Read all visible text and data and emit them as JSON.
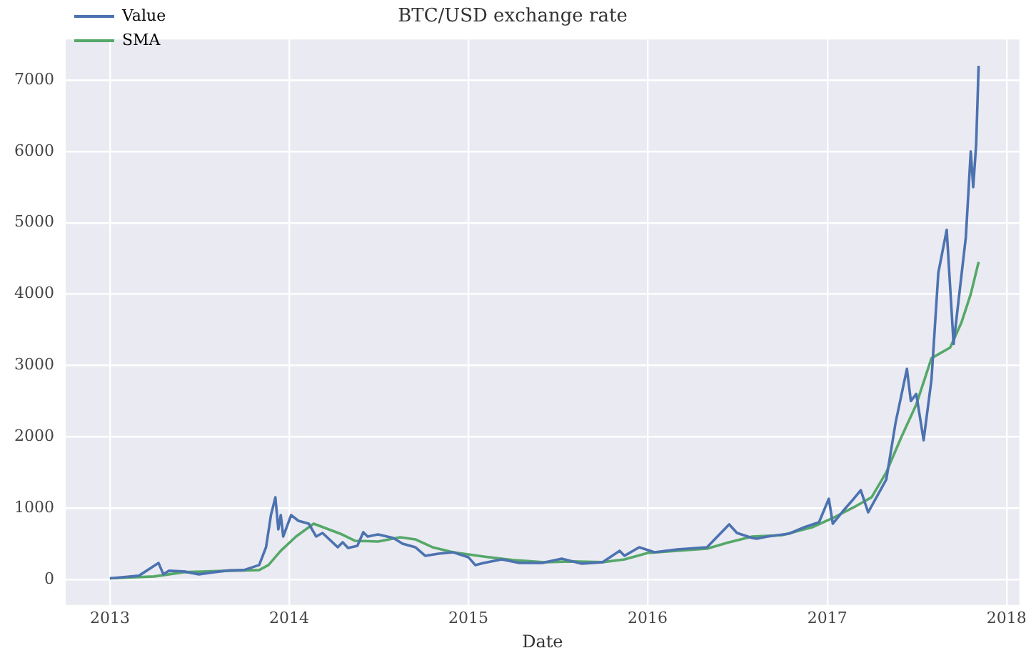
{
  "chart_data": {
    "type": "line",
    "title": "BTC/USD exchange rate",
    "xlabel": "Date",
    "xlim": [
      "2012-10-03",
      "2018-01-27"
    ],
    "xticks": [
      "2013",
      "2014",
      "2015",
      "2016",
      "2017",
      "2018"
    ],
    "ylim": [
      -360,
      7570
    ],
    "yticks": [
      0,
      1000,
      2000,
      3000,
      4000,
      5000,
      6000,
      7000
    ],
    "grid": true,
    "legend": "top left",
    "marker": "none",
    "line_style": "solid",
    "series": [
      {
        "name": "Value",
        "color": "#4c72b0",
        "x": [
          "2013-01-01",
          "2013-03-01",
          "2013-04-10",
          "2013-04-20",
          "2013-05-01",
          "2013-06-01",
          "2013-07-01",
          "2013-08-01",
          "2013-09-01",
          "2013-10-01",
          "2013-11-01",
          "2013-11-15",
          "2013-11-25",
          "2013-12-04",
          "2013-12-10",
          "2013-12-15",
          "2013-12-20",
          "2014-01-05",
          "2014-01-20",
          "2014-02-10",
          "2014-02-25",
          "2014-03-10",
          "2014-04-10",
          "2014-04-20",
          "2014-05-01",
          "2014-05-20",
          "2014-06-01",
          "2014-06-10",
          "2014-07-01",
          "2014-08-01",
          "2014-08-20",
          "2014-09-15",
          "2014-10-05",
          "2014-11-01",
          "2014-12-01",
          "2015-01-01",
          "2015-01-15",
          "2015-02-01",
          "2015-03-10",
          "2015-04-15",
          "2015-06-01",
          "2015-07-10",
          "2015-08-20",
          "2015-10-01",
          "2015-11-05",
          "2015-11-15",
          "2015-12-15",
          "2016-01-15",
          "2016-03-01",
          "2016-05-01",
          "2016-06-15",
          "2016-07-01",
          "2016-08-01",
          "2016-08-10",
          "2016-09-01",
          "2016-10-15",
          "2016-11-15",
          "2016-12-15",
          "2017-01-04",
          "2017-01-12",
          "2017-02-01",
          "2017-02-20",
          "2017-03-10",
          "2017-03-25",
          "2017-04-15",
          "2017-05-01",
          "2017-05-20",
          "2017-06-12",
          "2017-06-20",
          "2017-07-01",
          "2017-07-16",
          "2017-08-01",
          "2017-08-15",
          "2017-09-01",
          "2017-09-15",
          "2017-09-25",
          "2017-10-10",
          "2017-10-20",
          "2017-10-25",
          "2017-10-31",
          "2017-11-05"
        ],
        "values": [
          13,
          50,
          230,
          70,
          120,
          110,
          70,
          100,
          125,
          130,
          200,
          450,
          900,
          1150,
          700,
          900,
          600,
          900,
          820,
          780,
          600,
          650,
          450,
          520,
          440,
          470,
          660,
          600,
          630,
          580,
          500,
          450,
          330,
          360,
          380,
          310,
          200,
          230,
          280,
          230,
          230,
          290,
          220,
          240,
          400,
          330,
          450,
          380,
          420,
          450,
          770,
          650,
          580,
          570,
          600,
          640,
          730,
          800,
          1130,
          780,
          950,
          1100,
          1250,
          940,
          1200,
          1400,
          2200,
          2950,
          2500,
          2600,
          1950,
          2800,
          4300,
          4900,
          3300,
          3900,
          4800,
          6000,
          5500,
          6100,
          7200
        ]
      },
      {
        "name": "SMA",
        "color": "#55a868",
        "x": [
          "2013-01-01",
          "2013-04-01",
          "2013-06-01",
          "2013-09-01",
          "2013-11-01",
          "2013-11-20",
          "2013-12-15",
          "2014-01-15",
          "2014-02-20",
          "2014-03-15",
          "2014-04-15",
          "2014-05-15",
          "2014-07-01",
          "2014-08-15",
          "2014-09-15",
          "2014-10-20",
          "2014-12-01",
          "2015-02-01",
          "2015-04-01",
          "2015-06-01",
          "2015-08-01",
          "2015-10-01",
          "2015-11-15",
          "2016-01-01",
          "2016-03-01",
          "2016-05-01",
          "2016-06-15",
          "2016-08-01",
          "2016-10-01",
          "2016-12-01",
          "2017-01-15",
          "2017-03-01",
          "2017-04-01",
          "2017-05-01",
          "2017-06-01",
          "2017-07-01",
          "2017-08-01",
          "2017-09-08",
          "2017-10-01",
          "2017-10-20",
          "2017-11-05"
        ],
        "values": [
          13,
          40,
          100,
          120,
          130,
          200,
          400,
          600,
          780,
          720,
          640,
          540,
          530,
          590,
          560,
          450,
          380,
          320,
          270,
          240,
          250,
          240,
          280,
          370,
          400,
          430,
          520,
          600,
          620,
          730,
          870,
          1030,
          1150,
          1500,
          2000,
          2450,
          3100,
          3250,
          3600,
          4000,
          4450
        ]
      }
    ]
  }
}
